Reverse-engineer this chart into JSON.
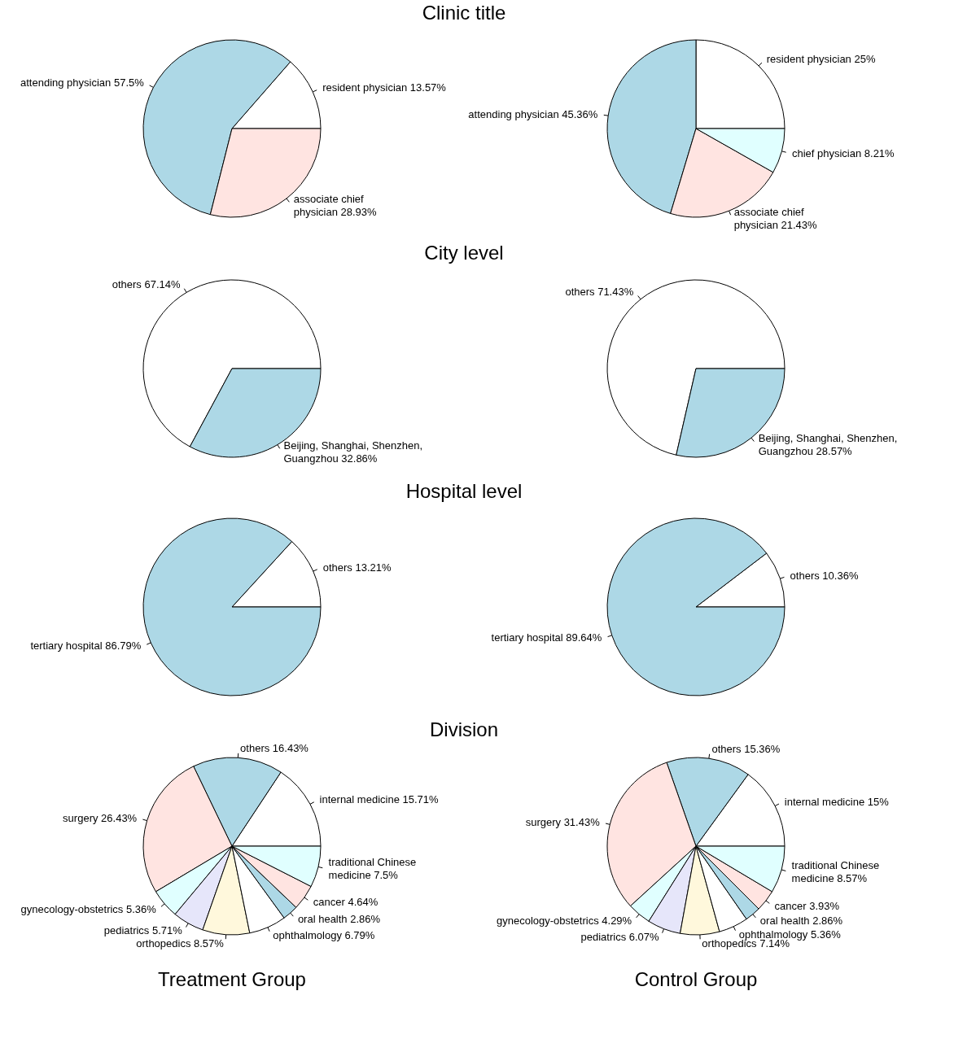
{
  "chart_data": [
    {
      "type": "pie",
      "title": "Clinic title",
      "categories": [
        "resident physician",
        "attending physician",
        "associate chief\nphysician"
      ],
      "values": [
        13.57,
        57.5,
        28.93
      ],
      "value_labels": [
        "13.57%",
        "57.5%",
        "28.93%"
      ],
      "colors": [
        "#ffffff",
        "#add8e6",
        "#ffe4e1"
      ]
    },
    {
      "type": "pie",
      "categories": [
        "resident physician",
        "attending physician",
        "associate chief\nphysician",
        "chief physician"
      ],
      "values": [
        25,
        45.36,
        21.43,
        8.21
      ],
      "value_labels": [
        "25%",
        "45.36%",
        "21.43%",
        "8.21%"
      ],
      "colors": [
        "#ffffff",
        "#add8e6",
        "#ffe4e1",
        "#e0ffff"
      ]
    },
    {
      "type": "pie",
      "title": "City level",
      "categories": [
        "others",
        "Beijing, Shanghai, Shenzhen,\nGuangzhou"
      ],
      "values": [
        67.14,
        32.86
      ],
      "value_labels": [
        "67.14%",
        "32.86%"
      ],
      "colors": [
        "#ffffff",
        "#add8e6"
      ]
    },
    {
      "type": "pie",
      "categories": [
        "others",
        "Beijing, Shanghai, Shenzhen,\nGuangzhou"
      ],
      "values": [
        71.43,
        28.57
      ],
      "value_labels": [
        "71.43%",
        "28.57%"
      ],
      "colors": [
        "#ffffff",
        "#add8e6"
      ]
    },
    {
      "type": "pie",
      "title": "Hospital level",
      "categories": [
        "others",
        "tertiary hospital"
      ],
      "values": [
        13.21,
        86.79
      ],
      "value_labels": [
        "13.21%",
        "86.79%"
      ],
      "colors": [
        "#ffffff",
        "#add8e6"
      ]
    },
    {
      "type": "pie",
      "categories": [
        "others",
        "tertiary hospital"
      ],
      "values": [
        10.36,
        89.64
      ],
      "value_labels": [
        "10.36%",
        "89.64%"
      ],
      "colors": [
        "#ffffff",
        "#add8e6"
      ]
    },
    {
      "type": "pie",
      "title": "Division",
      "annotations": [
        "Treatment Group"
      ],
      "categories": [
        "internal medicine",
        "others",
        "surgery",
        "gynecology-obstetrics",
        "pediatrics",
        "orthopedics",
        "ophthalmology",
        "oral health",
        "cancer",
        "traditional Chinese\nmedicine"
      ],
      "values": [
        15.71,
        16.43,
        26.43,
        5.36,
        5.71,
        8.57,
        6.79,
        2.86,
        4.64,
        7.5
      ],
      "value_labels": [
        "15.71%",
        "16.43%",
        "26.43%",
        "5.36%",
        "5.71%",
        "8.57%",
        "6.79%",
        "2.86%",
        "4.64%",
        "7.5%"
      ],
      "colors": [
        "#ffffff",
        "#add8e6",
        "#ffe4e1",
        "#e0ffff",
        "#e6e6fa",
        "#fff8dc",
        "#ffffff",
        "#add8e6",
        "#ffe4e1",
        "#e0ffff"
      ]
    },
    {
      "type": "pie",
      "annotations": [
        "Control Group"
      ],
      "categories": [
        "internal medicine",
        "others",
        "surgery",
        "gynecology-obstetrics",
        "pediatrics",
        "orthopedics",
        "ophthalmology",
        "oral health",
        "cancer",
        "traditional Chinese\nmedicine"
      ],
      "values": [
        15,
        15.36,
        31.43,
        4.29,
        6.07,
        7.14,
        5.36,
        2.86,
        3.93,
        8.57
      ],
      "value_labels": [
        "15%",
        "15.36%",
        "31.43%",
        "4.29%",
        "6.07%",
        "7.14%",
        "5.36%",
        "2.86%",
        "3.93%",
        "8.57%"
      ],
      "colors": [
        "#ffffff",
        "#add8e6",
        "#ffe4e1",
        "#e0ffff",
        "#e6e6fa",
        "#fff8dc",
        "#ffffff",
        "#add8e6",
        "#ffe4e1",
        "#e0ffff"
      ]
    }
  ]
}
